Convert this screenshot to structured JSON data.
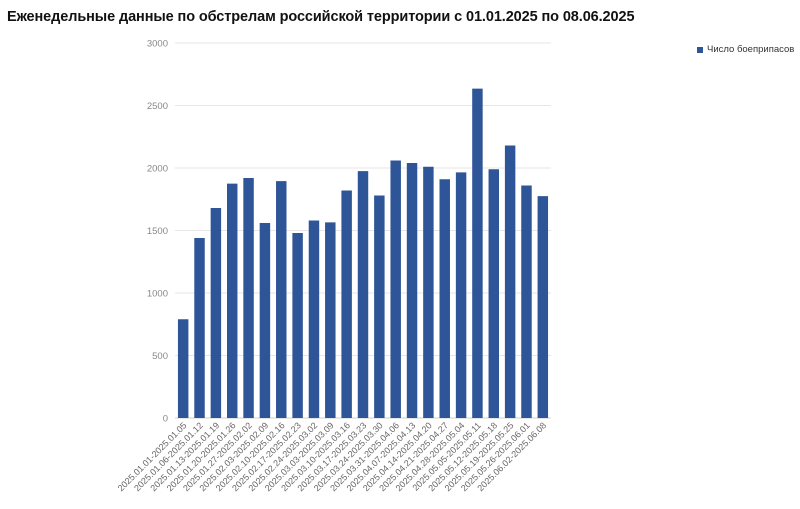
{
  "chart_data": {
    "type": "bar",
    "title": "Еженедельные данные по обстрелам российской территории с 01.01.2025 по 08.06.2025",
    "xlabel": "",
    "ylabel": "",
    "ylim": [
      0,
      3000
    ],
    "yticks": [
      0,
      500,
      1000,
      1500,
      2000,
      2500,
      3000
    ],
    "grid": true,
    "legend_position": "top-right",
    "bar_color": "#2e5597",
    "categories": [
      "2025.01.01-2025.01.05",
      "2025.01.06-2025.01.12",
      "2025.01.13-2025.01.19",
      "2025.01.20-2025.01.26",
      "2025.01.27-2025.02.02",
      "2025.02.03-2025.02.09",
      "2025.02.10-2025.02.16",
      "2025.02.17-2025.02.23",
      "2025.02.24-2025.03.02",
      "2025.03.03-2025.03.09",
      "2025.03.10-2025.03.16",
      "2025.03.17-2025.03.23",
      "2025.03.24-2025.03.30",
      "2025.03.31-2025.04.06",
      "2025.04.07-2025.04.13",
      "2025.04.14-2025.04.20",
      "2025.04.21-2025.04.27",
      "2025.04.28-2025.05.04",
      "2025.05.05-2025.05.11",
      "2025.05.12-2025.05.18",
      "2025.05.19-2025.05.25",
      "2025.05.26-2025.06.01",
      "2025.06.02-2025.06.08"
    ],
    "series": [
      {
        "name": "Число боеприпасов",
        "values": [
          790,
          1440,
          1680,
          1875,
          1920,
          1560,
          1895,
          1480,
          1580,
          1565,
          1820,
          1975,
          1780,
          2060,
          2040,
          2010,
          1910,
          1965,
          2635,
          1990,
          2180,
          1860,
          1775
        ]
      }
    ]
  }
}
